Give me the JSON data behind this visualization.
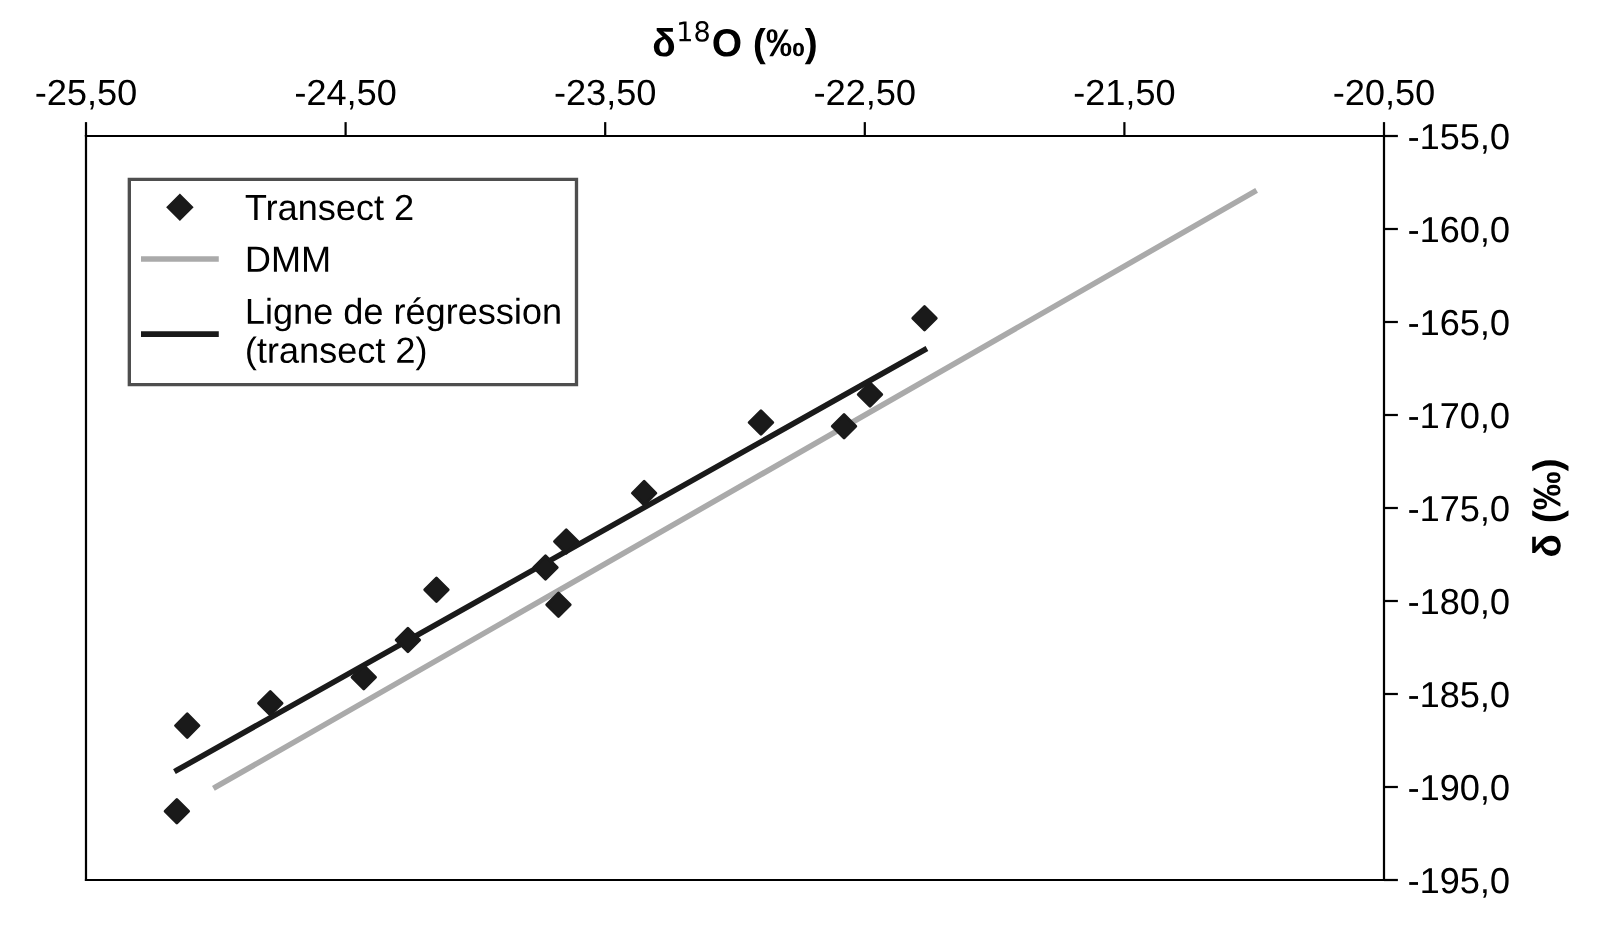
{
  "chart_data": {
    "type": "scatter",
    "xlabel": "δ$^{18}$O (‰)",
    "ylabel": "δ (‰)",
    "xlim": [
      -25.5,
      -20.5
    ],
    "ylim": [
      -195,
      -155
    ],
    "xticks": [
      {
        "value": -25.5,
        "label": "-25,50"
      },
      {
        "value": -24.5,
        "label": "-24,50"
      },
      {
        "value": -23.5,
        "label": "-23,50"
      },
      {
        "value": -22.5,
        "label": "-22,50"
      },
      {
        "value": -21.5,
        "label": "-21,50"
      },
      {
        "value": -20.5,
        "label": "-20,50"
      }
    ],
    "yticks": [
      {
        "value": -155,
        "label": "-155,0"
      },
      {
        "value": -160,
        "label": "-160,0"
      },
      {
        "value": -165,
        "label": "-165,0"
      },
      {
        "value": -170,
        "label": "-170,0"
      },
      {
        "value": -175,
        "label": "-175,0"
      },
      {
        "value": -180,
        "label": "-180,0"
      },
      {
        "value": -185,
        "label": "-185,0"
      },
      {
        "value": -190,
        "label": "-190,0"
      },
      {
        "value": -195,
        "label": "-195,0"
      }
    ],
    "legend": "top left",
    "grid": false,
    "series": [
      {
        "name": "Transect 2",
        "marker": "diamond",
        "color": "#1a1a1a",
        "x": [
          -25.15,
          -25.11,
          -24.79,
          -24.43,
          -24.26,
          -24.15,
          -23.73,
          -23.68,
          -23.65,
          -23.35,
          -22.9,
          -22.58,
          -22.48,
          -22.27
        ],
        "values": [
          -191.3,
          -186.7,
          -185.5,
          -184.1,
          -182.1,
          -179.4,
          -178.2,
          -180.2,
          -176.8,
          -174.2,
          -170.4,
          -170.6,
          -168.9,
          -164.8
        ]
      },
      {
        "name": "DMM",
        "type": "line",
        "color": "#aaaaaa",
        "x": [
          -25.0,
          -21.0
        ],
        "values": [
          -190.0,
          -158.0
        ]
      },
      {
        "name": "Ligne de régression\n(transect 2)",
        "type": "line",
        "color": "#1a1a1a",
        "x": [
          -25.15,
          -22.27
        ],
        "values": [
          -189.1,
          -166.5
        ]
      }
    ]
  }
}
